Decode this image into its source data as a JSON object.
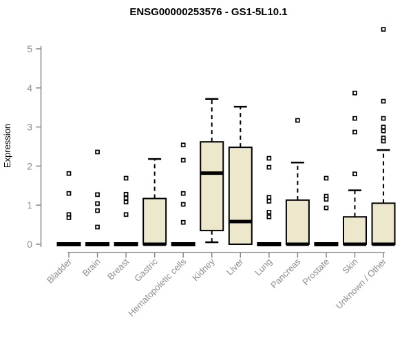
{
  "colors": {
    "background": "#FFFFFF",
    "box_fill": "#EDE7CC",
    "box_stroke": "#000000",
    "median": "#000000",
    "whisker": "#000000",
    "outlier_stroke": "#000000",
    "outlier_fill": "#FFFFFF",
    "axis": "#888888",
    "axis_text": "#8C8C8C",
    "title_text": "#000000"
  },
  "chart_data": {
    "type": "boxplot",
    "title": "ENSG00000253576 - GS1-5L10.1",
    "xlabel": "",
    "ylabel": "Expression",
    "ylim": [
      0,
      5
    ],
    "yticks": [
      "0",
      "1",
      "2",
      "3",
      "4",
      "5"
    ],
    "grid": false,
    "legend": "none",
    "categories": [
      "Bladder",
      "Brain",
      "Breast",
      "Gastric",
      "Hematopoietic cells",
      "Kidney",
      "Liver",
      "Lung",
      "Pancreas",
      "Prostate",
      "Skin",
      "Unknown / Other"
    ],
    "boxes": [
      {
        "category": "Bladder",
        "q1": 0,
        "median": 0,
        "q3": 0,
        "whisker_low": 0,
        "whisker_high": 0,
        "outliers": [
          1.81,
          1.3,
          0.76,
          0.68
        ]
      },
      {
        "category": "Brain",
        "q1": 0,
        "median": 0,
        "q3": 0,
        "whisker_low": 0,
        "whisker_high": 0,
        "outliers": [
          2.36,
          1.27,
          1.04,
          0.86,
          0.44
        ]
      },
      {
        "category": "Breast",
        "q1": 0,
        "median": 0,
        "q3": 0,
        "whisker_low": 0,
        "whisker_high": 0,
        "outliers": [
          1.69,
          1.28,
          1.18,
          1.08,
          0.76
        ]
      },
      {
        "category": "Gastric",
        "q1": 0,
        "median": 0,
        "q3": 1.17,
        "whisker_low": 0,
        "whisker_high": 2.18,
        "outliers": []
      },
      {
        "category": "Hematopoietic cells",
        "q1": 0,
        "median": 0,
        "q3": 0,
        "whisker_low": 0,
        "whisker_high": 0,
        "outliers": [
          2.54,
          2.15,
          1.3,
          1.02,
          0.56
        ]
      },
      {
        "category": "Kidney",
        "q1": 0.35,
        "median": 1.82,
        "q3": 2.62,
        "whisker_low": 0.05,
        "whisker_high": 3.72,
        "outliers": []
      },
      {
        "category": "Liver",
        "q1": 0,
        "median": 0.58,
        "q3": 2.48,
        "whisker_low": 0,
        "whisker_high": 3.52,
        "outliers": []
      },
      {
        "category": "Lung",
        "q1": 0,
        "median": 0,
        "q3": 0,
        "whisker_low": 0,
        "whisker_high": 0,
        "outliers": [
          2.2,
          1.97,
          1.2,
          1.1,
          0.82,
          0.7
        ]
      },
      {
        "category": "Pancreas",
        "q1": 0,
        "median": 0,
        "q3": 1.13,
        "whisker_low": 0,
        "whisker_high": 2.09,
        "outliers": [
          3.17
        ]
      },
      {
        "category": "Prostate",
        "q1": 0,
        "median": 0,
        "q3": 0,
        "whisker_low": 0,
        "whisker_high": 0,
        "outliers": [
          1.69,
          1.23,
          1.15,
          0.93
        ]
      },
      {
        "category": "Skin",
        "q1": 0,
        "median": 0,
        "q3": 0.7,
        "whisker_low": 0,
        "whisker_high": 1.38,
        "outliers": [
          3.87,
          3.22,
          2.87,
          1.8
        ]
      },
      {
        "category": "Unknown / Other",
        "q1": 0,
        "median": 0,
        "q3": 1.05,
        "whisker_low": 0,
        "whisker_high": 2.41,
        "outliers": [
          5.5,
          3.66,
          3.22,
          3.0,
          2.9,
          2.72,
          2.64
        ]
      }
    ]
  }
}
